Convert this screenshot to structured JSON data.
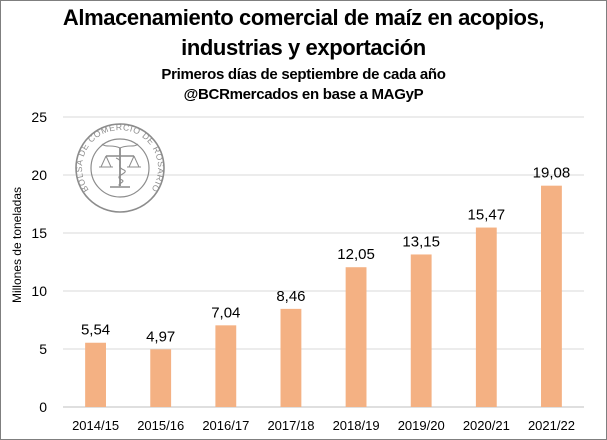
{
  "title_line1": "Almacenamiento comercial de maíz en acopios,",
  "title_line2": "industrias y exportación",
  "subtitle_line1": "Primeros días de septiembre de cada año",
  "subtitle_line2": "@BCRmercados en base a MAGyP",
  "logo_text": "BOLSA DE COMERCIO DE ROSARIO",
  "colors": {
    "bar": "#f4b183",
    "grid": "#d9d9d9",
    "axis": "#bfbfbf",
    "text": "#000000"
  },
  "chart_data": {
    "type": "bar",
    "title": "Almacenamiento comercial de maíz en acopios, industrias y exportación",
    "subtitle": "Primeros días de septiembre de cada año",
    "xlabel": "",
    "ylabel": "Millones de toneladas",
    "categories": [
      "2014/15",
      "2015/16",
      "2016/17",
      "2017/18",
      "2018/19",
      "2019/20",
      "2020/21",
      "2021/22"
    ],
    "values": [
      5.54,
      4.97,
      7.04,
      8.46,
      12.05,
      13.15,
      15.47,
      19.08
    ],
    "data_labels": [
      "5,54",
      "4,97",
      "7,04",
      "8,46",
      "12,05",
      "13,15",
      "15,47",
      "19,08"
    ],
    "yticks": [
      0,
      5,
      10,
      15,
      20,
      25
    ],
    "ylim": [
      0,
      25
    ],
    "grid": true,
    "legend": "none"
  }
}
